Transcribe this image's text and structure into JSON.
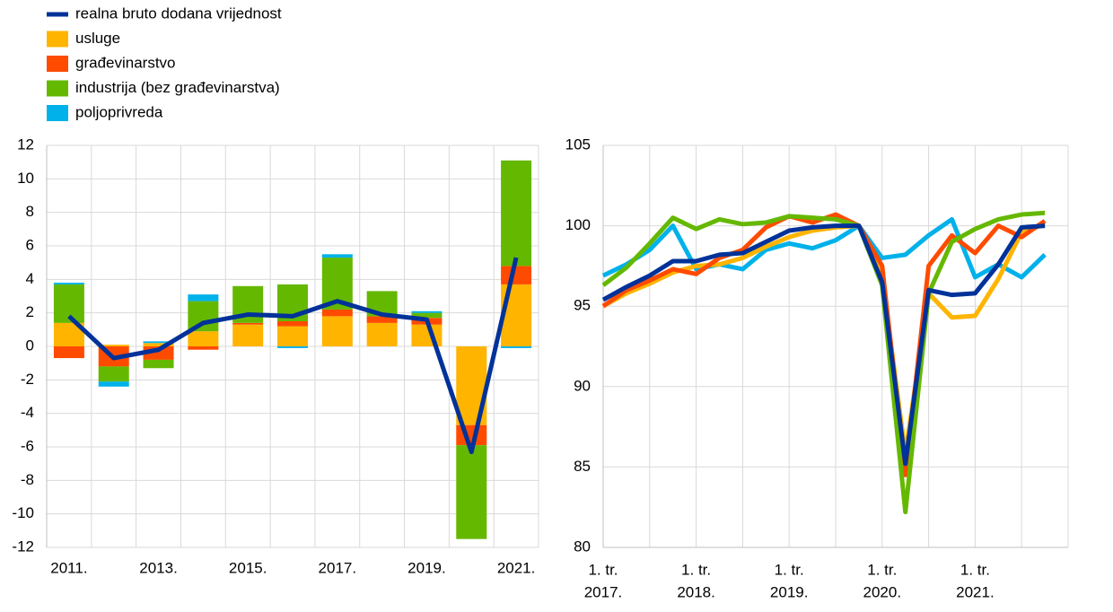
{
  "chart_data": [
    {
      "type": "bar",
      "stacked": true,
      "categories": [
        "2011.",
        null,
        "2013.",
        null,
        "2015.",
        null,
        "2017.",
        null,
        "2019.",
        null,
        "2021."
      ],
      "ylim": [
        -12,
        12
      ],
      "yticks": [
        -12,
        -10,
        -8,
        -6,
        -4,
        -2,
        0,
        2,
        4,
        6,
        8,
        10,
        12
      ],
      "grid": true,
      "series": [
        {
          "name": "realna bruto dodana vrijednost",
          "type": "line",
          "color": "#003299",
          "values": [
            1.8,
            -0.7,
            -0.2,
            1.4,
            1.9,
            1.8,
            2.7,
            1.9,
            1.6,
            -6.3,
            5.3
          ]
        },
        {
          "name": "usluge",
          "color": "#ffb400",
          "values": [
            1.4,
            0.1,
            0.2,
            0.9,
            1.3,
            1.2,
            1.8,
            1.4,
            1.3,
            -4.7,
            3.7
          ]
        },
        {
          "name": "građevinarstvo",
          "color": "#ff4b00",
          "values": [
            -0.7,
            -1.2,
            -0.8,
            -0.2,
            0.1,
            0.3,
            0.4,
            0.4,
            0.4,
            -1.2,
            1.1
          ]
        },
        {
          "name": "industrija (bez građevinarstva)",
          "color": "#65b800",
          "values": [
            2.3,
            -0.9,
            -0.5,
            1.8,
            2.2,
            2.2,
            3.1,
            1.5,
            0.3,
            -5.6,
            6.3
          ]
        },
        {
          "name": "poljoprivreda",
          "color": "#00b1ea",
          "values": [
            0.1,
            -0.3,
            0.1,
            0.4,
            0.0,
            -0.1,
            0.2,
            0.0,
            0.1,
            0.0,
            -0.1
          ]
        }
      ]
    },
    {
      "type": "line",
      "categories": [
        [
          "1. tr.",
          "2017."
        ],
        null,
        null,
        null,
        [
          "1. tr.",
          "2018."
        ],
        null,
        null,
        null,
        [
          "1. tr.",
          "2019."
        ],
        null,
        null,
        null,
        [
          "1. tr.",
          "2020."
        ],
        null,
        null,
        null,
        [
          "1. tr.",
          "2021."
        ],
        null,
        null,
        null
      ],
      "ylim": [
        80,
        105
      ],
      "yticks": [
        80,
        85,
        90,
        95,
        100,
        105
      ],
      "grid": true,
      "series": [
        {
          "color": "#00b1ea",
          "values": [
            96.9,
            97.6,
            98.5,
            100.0,
            97.3,
            97.6,
            97.3,
            98.5,
            98.9,
            98.6,
            99.1,
            100.0,
            98.0,
            98.2,
            99.4,
            100.4,
            96.8,
            97.6,
            96.8,
            98.2
          ]
        },
        {
          "color": "#ffb400",
          "values": [
            95.0,
            95.8,
            96.4,
            97.1,
            97.5,
            97.6,
            98.0,
            98.7,
            99.3,
            99.7,
            99.9,
            100.0,
            96.8,
            85.8,
            95.8,
            94.3,
            94.4,
            96.7,
            99.6,
            100.1
          ]
        },
        {
          "color": "#ff4b00",
          "values": [
            95.0,
            96.0,
            96.6,
            97.3,
            97.0,
            98.0,
            98.5,
            99.9,
            100.6,
            100.2,
            100.7,
            100.0,
            97.5,
            84.5,
            97.5,
            99.4,
            98.3,
            100.0,
            99.3,
            100.3
          ]
        },
        {
          "color": "#65b800",
          "values": [
            96.3,
            97.4,
            98.9,
            100.5,
            99.8,
            100.4,
            100.1,
            100.2,
            100.6,
            100.5,
            100.4,
            100.0,
            96.3,
            82.2,
            95.8,
            99.0,
            99.8,
            100.4,
            100.7,
            100.8
          ]
        },
        {
          "color": "#003299",
          "values": [
            95.4,
            96.2,
            96.9,
            97.8,
            97.8,
            98.2,
            98.3,
            99.0,
            99.7,
            99.9,
            100.0,
            100.0,
            96.5,
            85.2,
            96.0,
            95.7,
            95.8,
            97.6,
            99.9,
            100.0
          ]
        }
      ]
    }
  ]
}
